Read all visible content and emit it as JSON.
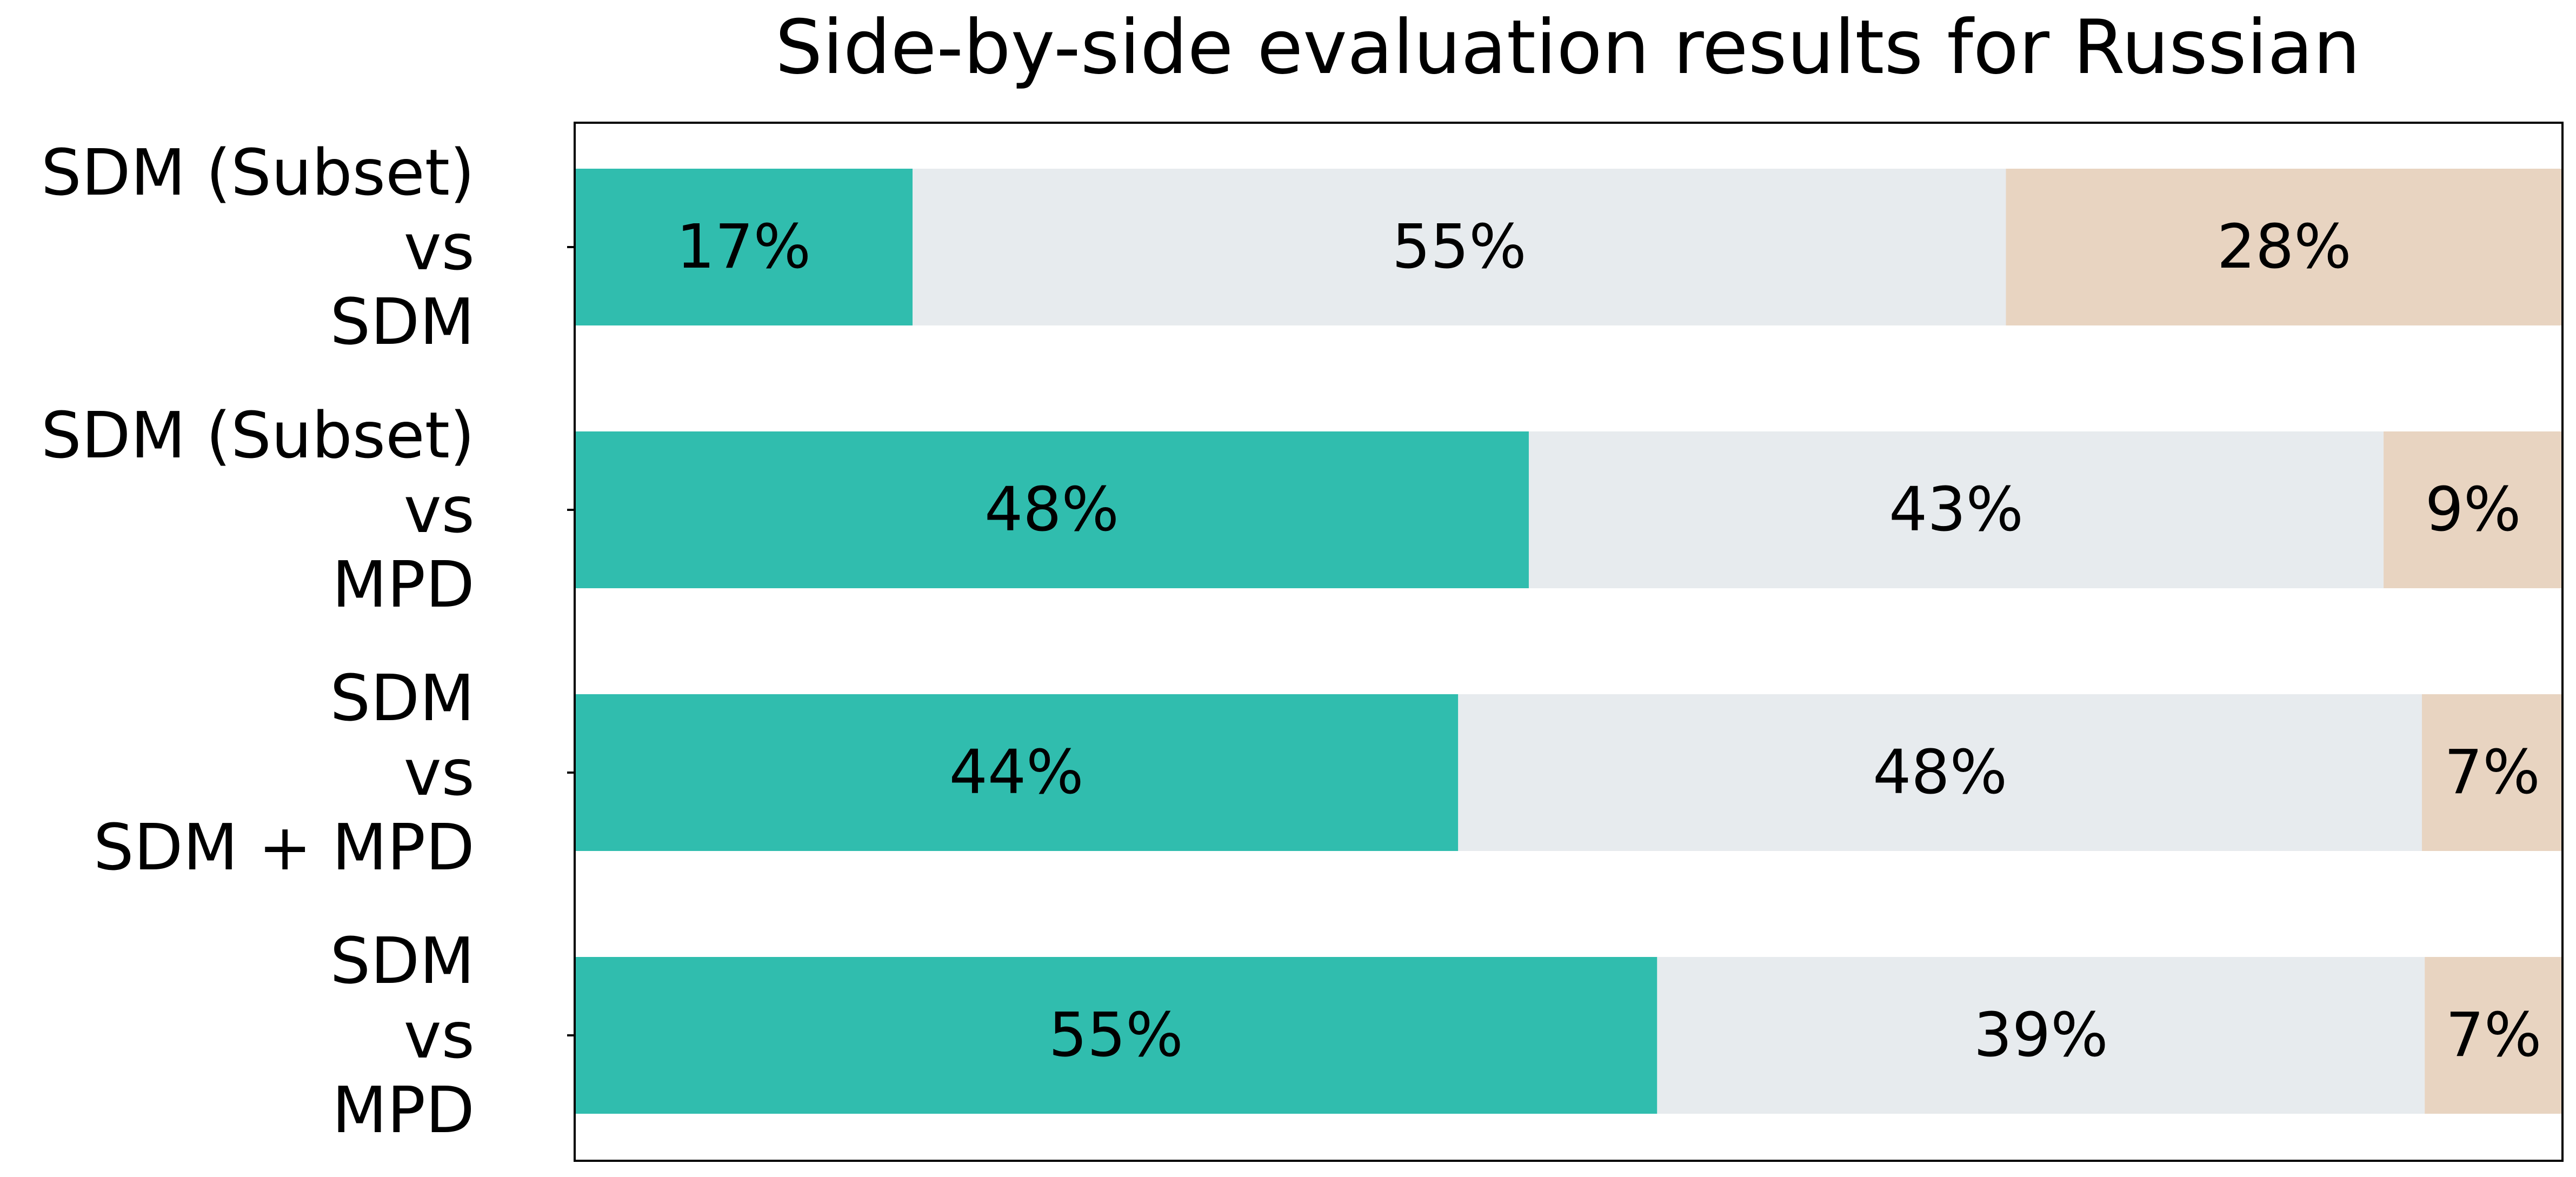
{
  "chart_data": {
    "type": "bar",
    "orientation": "horizontal",
    "stacked": true,
    "normalized": true,
    "title": "Side-by-side evaluation results for Russian",
    "categories": [
      [
        "SDM (Subset)",
        "vs",
        "SDM"
      ],
      [
        "SDM (Subset)",
        "vs",
        "MPD"
      ],
      [
        "SDM ",
        "vs",
        "SDM + MPD"
      ],
      [
        "SDM ",
        "vs",
        "MPD"
      ]
    ],
    "series": [
      {
        "color": "#30bdae",
        "values": [
          17,
          48,
          44,
          55
        ],
        "labels": [
          "17%",
          "48%",
          "44%",
          "55%"
        ]
      },
      {
        "color": "#e7ebee",
        "values": [
          55,
          43,
          48,
          39
        ],
        "labels": [
          "55%",
          "43%",
          "48%",
          "39%"
        ]
      },
      {
        "color": "#e8d4c1",
        "values": [
          28,
          9,
          7,
          7
        ],
        "labels": [
          "28%",
          "9%",
          "7%",
          "7%"
        ]
      }
    ],
    "xlim": [
      0,
      100
    ],
    "xlabel": "",
    "ylabel": "",
    "grid": false,
    "legend": "none"
  }
}
